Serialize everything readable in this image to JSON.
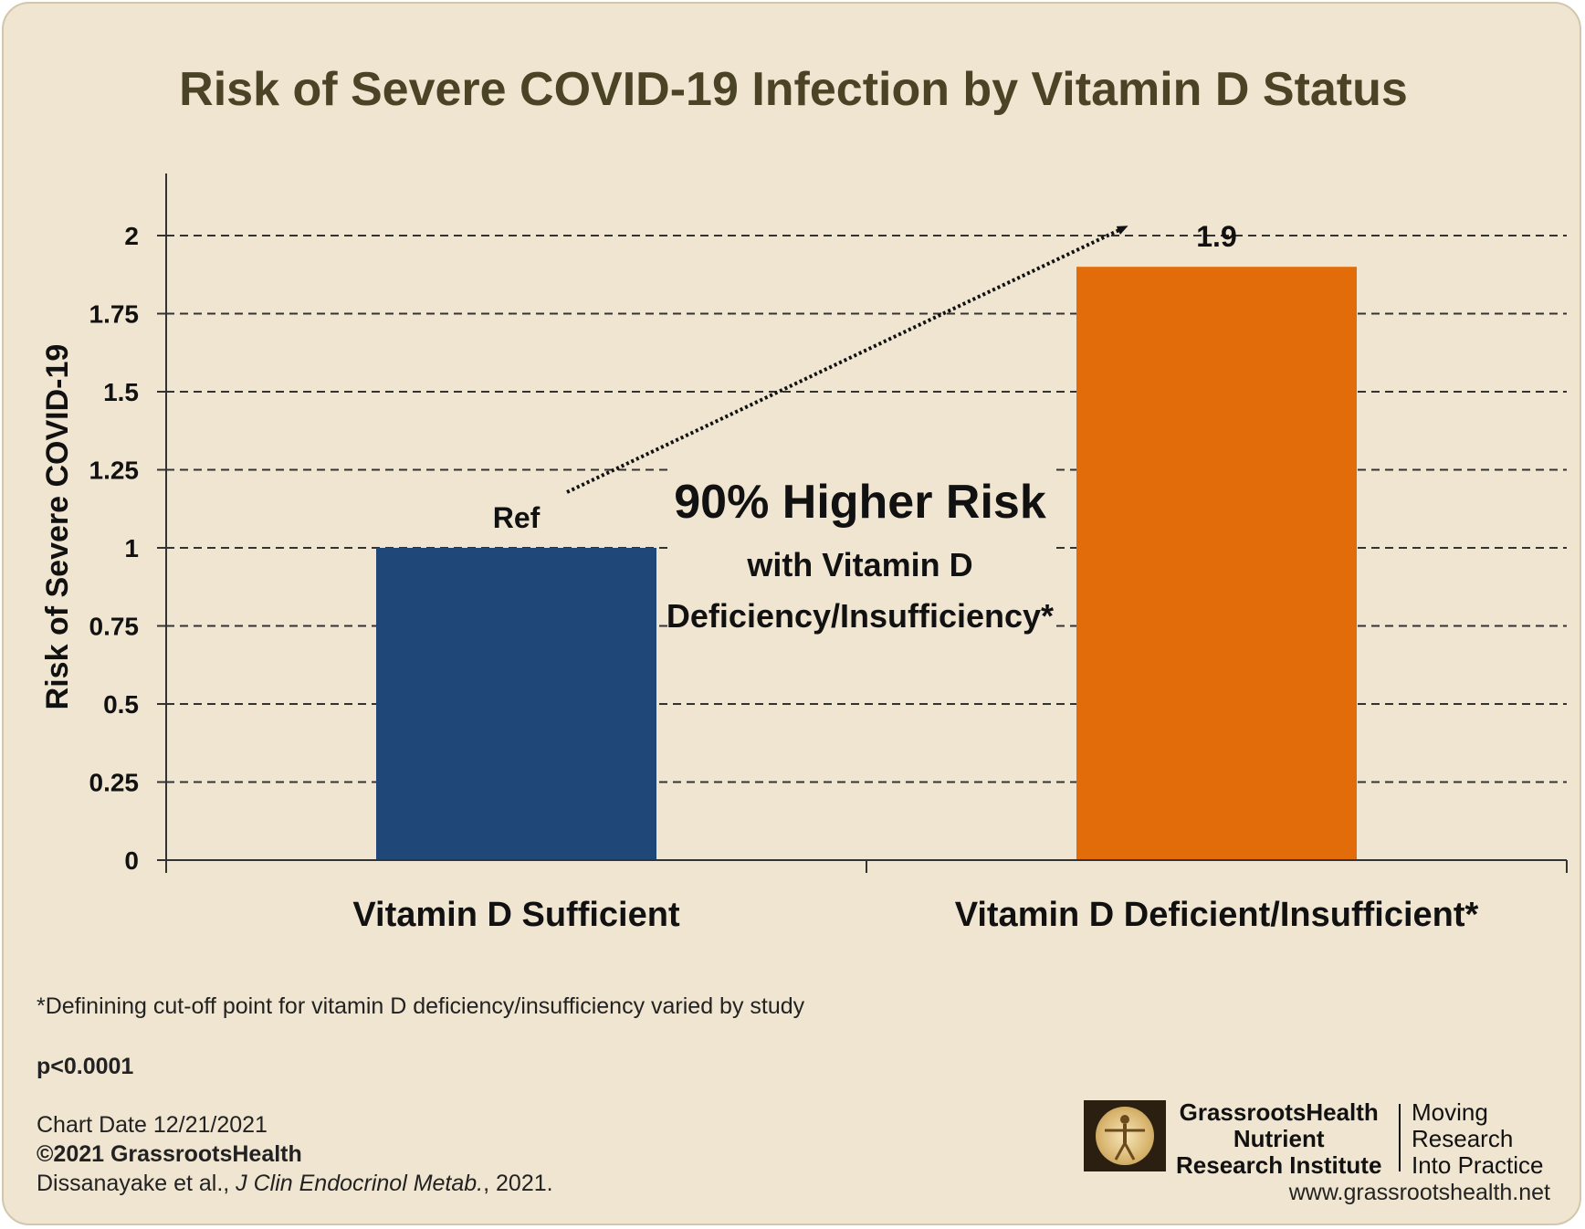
{
  "chart_data": {
    "type": "bar",
    "title": "Risk of Severe COVID-19 Infection by Vitamin D Status",
    "xlabel": "",
    "ylabel": "Risk of Severe COVID-19",
    "ylim": [
      0,
      2.2
    ],
    "yticks": [
      "0",
      "0.25",
      "0.5",
      "0.75",
      "1",
      "1.25",
      "1.5",
      "1.75",
      "2"
    ],
    "categories": [
      "Vitamin D Sufficient",
      "Vitamin D Deficient/Insufficient*"
    ],
    "values": [
      1,
      1.9
    ],
    "data_labels": [
      "Ref",
      "1.9"
    ],
    "colors": [
      "#1f4878",
      "#e36c0a"
    ],
    "grid": true,
    "annotation": {
      "headline": "90% Higher Risk",
      "line1": "with Vitamin D",
      "line2": "Deficiency/Insufficiency*"
    }
  },
  "footer": {
    "footnote": "*Definining cut-off point for vitamin D deficiency/insufficiency varied by study",
    "pvalue": "p<0.0001",
    "chart_date": "Chart Date 12/21/2021",
    "copyright": "©2021 GrassrootsHealth",
    "citation_authors": "Dissanayake et al., ",
    "citation_journal": "J Clin Endocrinol Metab.",
    "citation_year": ", 2021."
  },
  "brand": {
    "line1": "GrassrootsHealth",
    "line2": "Nutrient",
    "line3": "Research Institute",
    "tag1": "Moving",
    "tag2": "Research",
    "tag3": "Into Practice",
    "url": "www.grassrootshealth.net"
  }
}
